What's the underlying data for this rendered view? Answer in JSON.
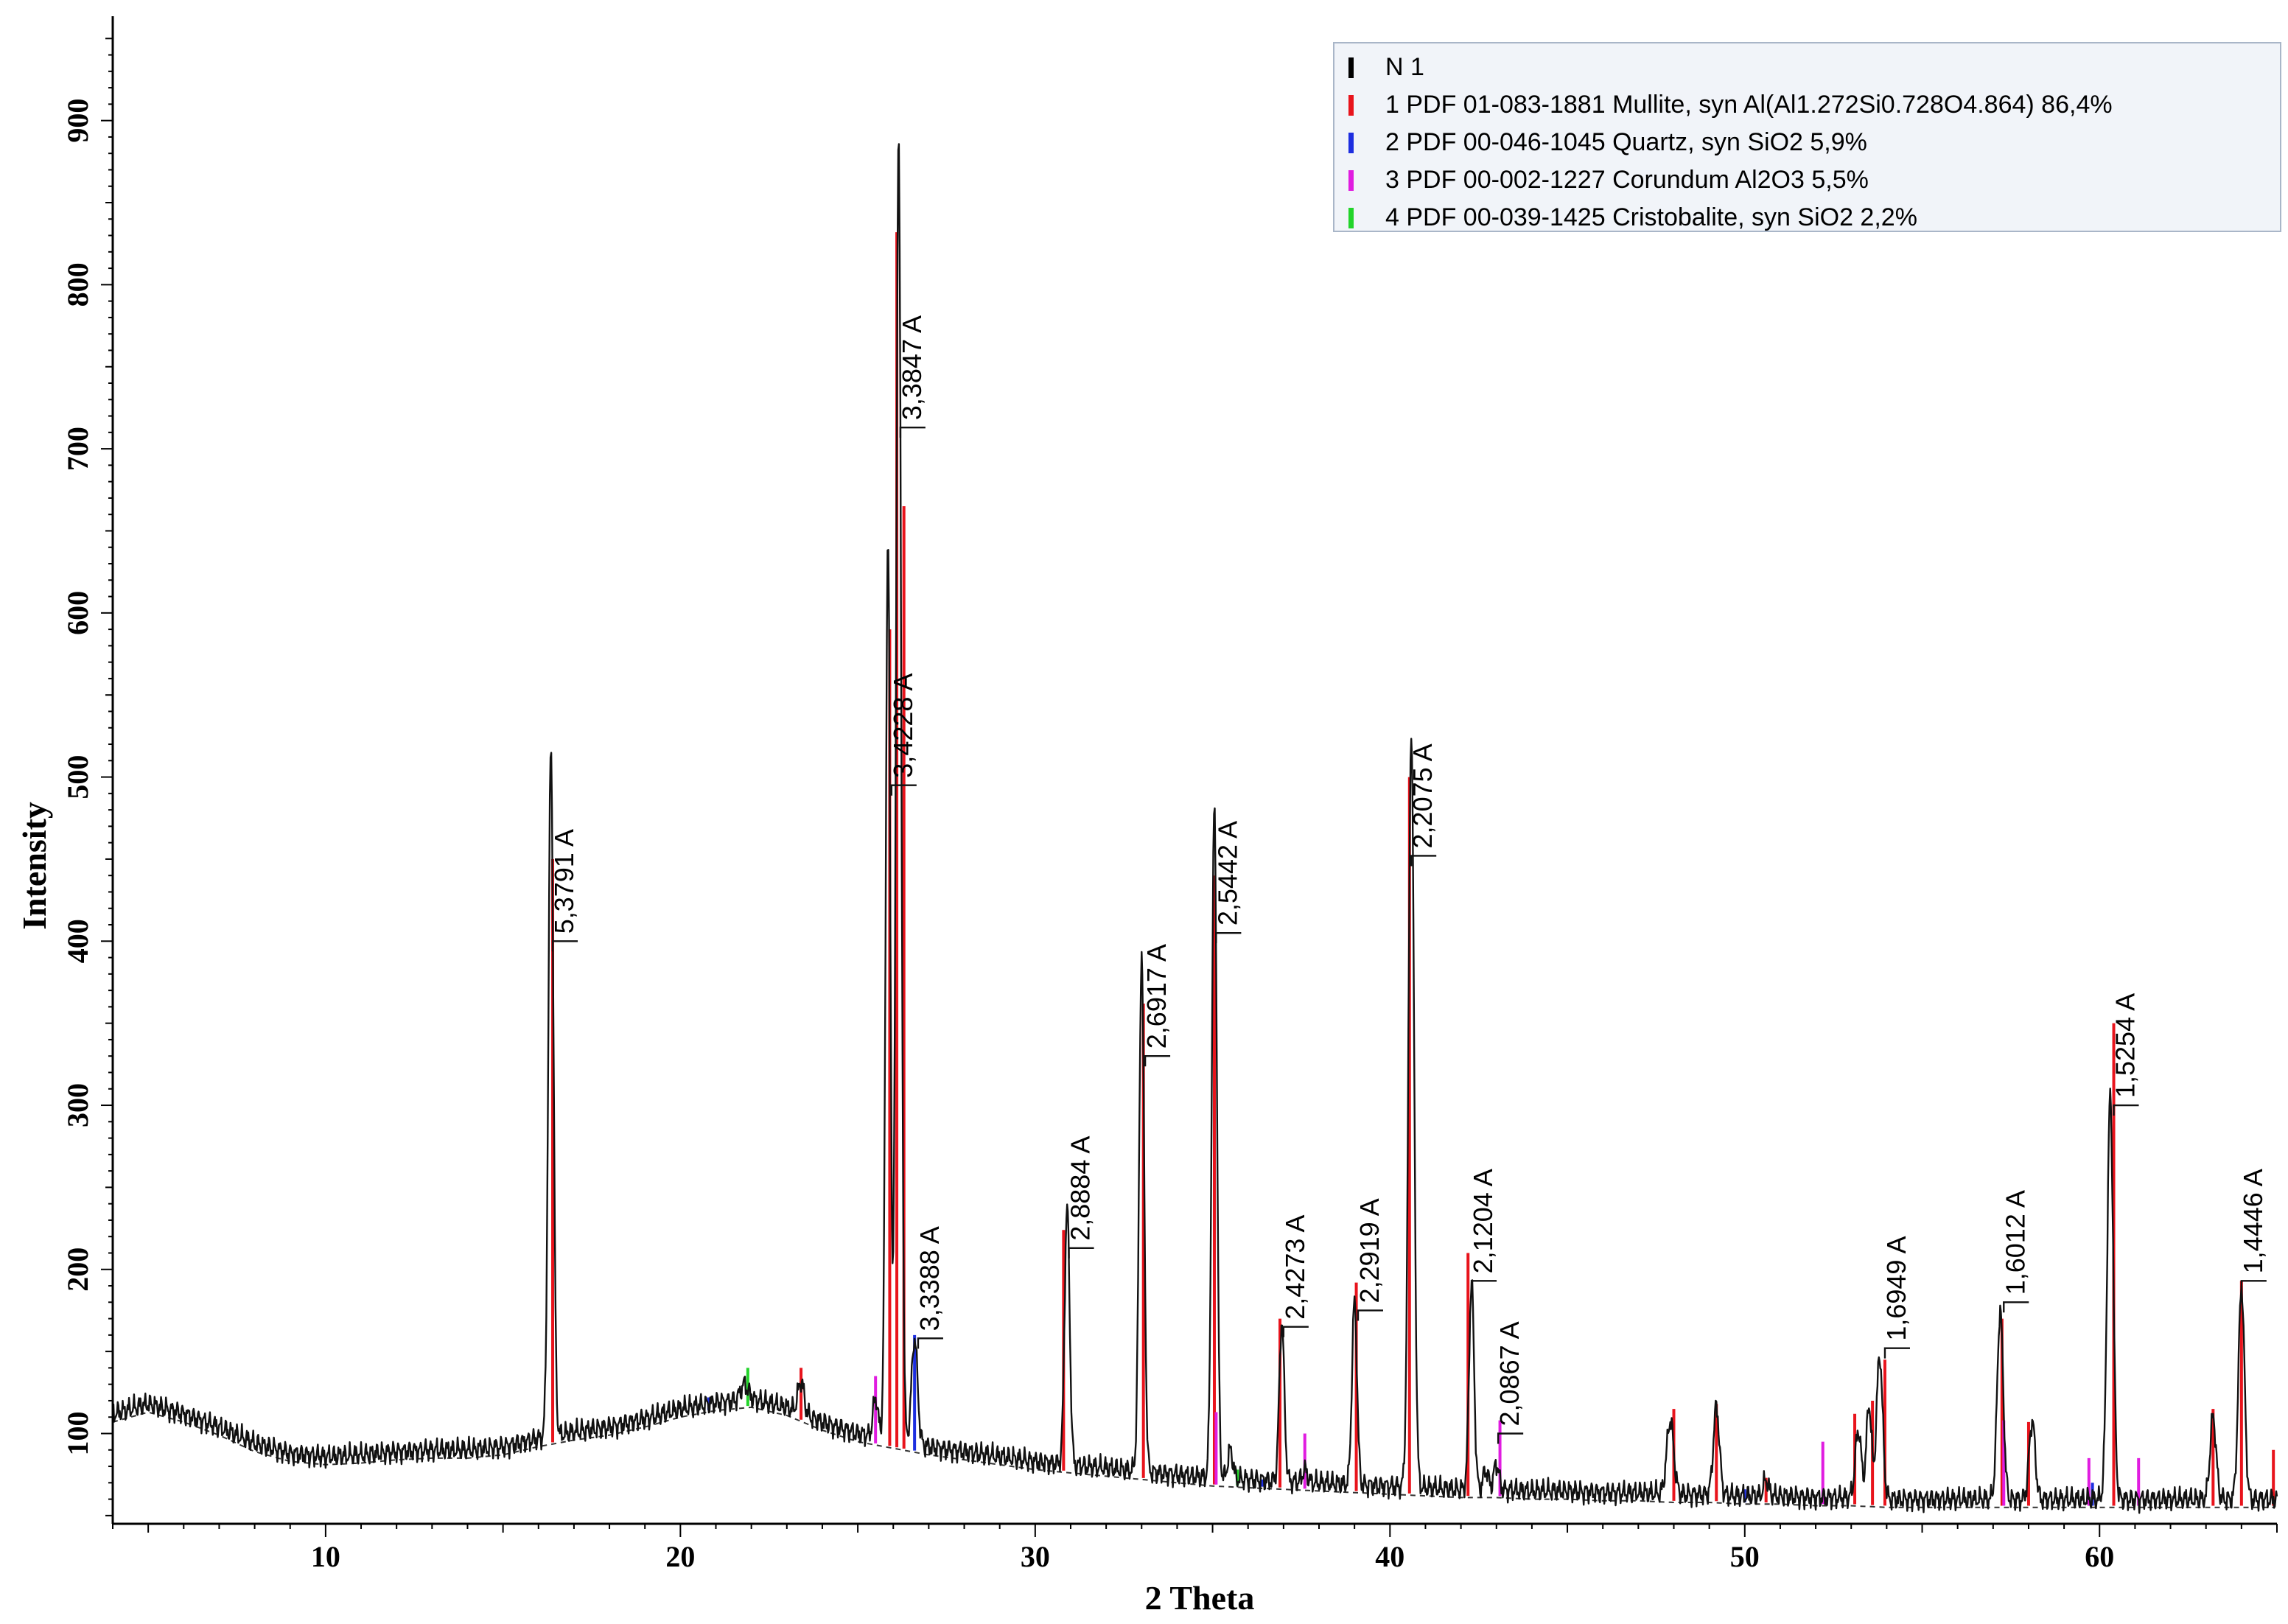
{
  "chart_data": {
    "type": "line",
    "xlabel": "2 Theta",
    "ylabel": "Intensity",
    "xlim": [
      4,
      65
    ],
    "ylim": [
      45,
      960
    ],
    "x_ticks": [
      10,
      20,
      30,
      40,
      50,
      60
    ],
    "y_ticks": [
      100,
      200,
      300,
      400,
      500,
      600,
      700,
      800,
      900
    ],
    "series": [
      {
        "name": "N 1",
        "color": "#000000",
        "baseline": [
          [
            4,
            112
          ],
          [
            5,
            118
          ],
          [
            6,
            112
          ],
          [
            7,
            104
          ],
          [
            8,
            94
          ],
          [
            9,
            88
          ],
          [
            10,
            86
          ],
          [
            11,
            87
          ],
          [
            12,
            89
          ],
          [
            13,
            90
          ],
          [
            14,
            90
          ],
          [
            15,
            92
          ],
          [
            16,
            97
          ],
          [
            17,
            101
          ],
          [
            18,
            104
          ],
          [
            19,
            109
          ],
          [
            20,
            115
          ],
          [
            21,
            119
          ],
          [
            22,
            121
          ],
          [
            23,
            116
          ],
          [
            24,
            107
          ],
          [
            25,
            100
          ],
          [
            26,
            96
          ],
          [
            27,
            92
          ],
          [
            28,
            89
          ],
          [
            29,
            86
          ],
          [
            30,
            83
          ],
          [
            31,
            81
          ],
          [
            32,
            79
          ],
          [
            33,
            77
          ],
          [
            34,
            75
          ],
          [
            35,
            73
          ],
          [
            36,
            72
          ],
          [
            37,
            71
          ],
          [
            38,
            70
          ],
          [
            39,
            69
          ],
          [
            40,
            68
          ],
          [
            41,
            67
          ],
          [
            42,
            66
          ],
          [
            43,
            66
          ],
          [
            44,
            65
          ],
          [
            45,
            65
          ],
          [
            46,
            64
          ],
          [
            47,
            64
          ],
          [
            48,
            63
          ],
          [
            49,
            63
          ],
          [
            50,
            62
          ],
          [
            51,
            62
          ],
          [
            52,
            61
          ],
          [
            53,
            61
          ],
          [
            54,
            60
          ],
          [
            55,
            60
          ],
          [
            56,
            60
          ],
          [
            57,
            60
          ],
          [
            58,
            60
          ],
          [
            59,
            60
          ],
          [
            60,
            60
          ],
          [
            61,
            60
          ],
          [
            62,
            60
          ],
          [
            63,
            60
          ],
          [
            64,
            60
          ],
          [
            65,
            60
          ]
        ],
        "peaks": [
          [
            16.35,
            518,
            0.1
          ],
          [
            21.8,
            130,
            0.15
          ],
          [
            23.4,
            132,
            0.12
          ],
          [
            25.5,
            122,
            0.1
          ],
          [
            25.85,
            648,
            0.09
          ],
          [
            26.15,
            893,
            0.1
          ],
          [
            26.6,
            158,
            0.12
          ],
          [
            30.9,
            238,
            0.1
          ],
          [
            33.0,
            392,
            0.1
          ],
          [
            35.05,
            482,
            0.1
          ],
          [
            35.5,
            90,
            0.1
          ],
          [
            36.95,
            168,
            0.1
          ],
          [
            37.6,
            78,
            0.1
          ],
          [
            39.0,
            180,
            0.1
          ],
          [
            40.6,
            528,
            0.11
          ],
          [
            42.3,
            192,
            0.1
          ],
          [
            42.7,
            78,
            0.1
          ],
          [
            43.0,
            82,
            0.1
          ],
          [
            47.9,
            108,
            0.14
          ],
          [
            49.2,
            116,
            0.12
          ],
          [
            50.6,
            72,
            0.1
          ],
          [
            53.2,
            102,
            0.12
          ],
          [
            53.5,
            118,
            0.1
          ],
          [
            53.8,
            148,
            0.12
          ],
          [
            57.2,
            175,
            0.12
          ],
          [
            58.1,
            108,
            0.12
          ],
          [
            60.3,
            305,
            0.12
          ],
          [
            63.2,
            110,
            0.12
          ],
          [
            64.0,
            190,
            0.12
          ]
        ]
      }
    ],
    "phases": [
      {
        "name": "1 PDF 01-083-1881 Mullite, syn Al(Al1.272Si0.728O4.864) 86,4%",
        "color": "#e8141c",
        "sticks": [
          [
            16.4,
            450
          ],
          [
            23.4,
            140
          ],
          [
            25.9,
            590
          ],
          [
            26.1,
            832
          ],
          [
            26.3,
            665
          ],
          [
            30.8,
            224
          ],
          [
            33.05,
            362
          ],
          [
            35.05,
            440
          ],
          [
            36.9,
            170
          ],
          [
            39.05,
            192
          ],
          [
            40.55,
            500
          ],
          [
            42.2,
            210
          ],
          [
            48.0,
            115
          ],
          [
            49.2,
            118
          ],
          [
            50.6,
            73
          ],
          [
            53.1,
            112
          ],
          [
            53.6,
            120
          ],
          [
            53.95,
            145
          ],
          [
            57.25,
            170
          ],
          [
            58.0,
            107
          ],
          [
            60.4,
            350
          ],
          [
            63.2,
            115
          ],
          [
            64.0,
            193
          ],
          [
            64.9,
            90
          ]
        ]
      },
      {
        "name": "2 PDF 00-046-1045 Quartz, syn SiO2 5,9%",
        "color": "#1d2ee0",
        "sticks": [
          [
            20.8,
            122
          ],
          [
            26.6,
            160
          ],
          [
            36.4,
            72
          ],
          [
            50.0,
            66
          ],
          [
            59.8,
            70
          ]
        ]
      },
      {
        "name": "3 PDF 00-002-1227 Corundum Al2O3 5,5%",
        "color": "#e01ce0",
        "sticks": [
          [
            25.5,
            135
          ],
          [
            35.1,
            113
          ],
          [
            37.6,
            100
          ],
          [
            43.1,
            108
          ],
          [
            52.2,
            95
          ],
          [
            57.3,
            108
          ],
          [
            59.7,
            85
          ],
          [
            61.1,
            85
          ]
        ]
      },
      {
        "name": "4 PDF 00-039-1425 Cristobalite, syn SiO2 2,2%",
        "color": "#22d42a",
        "sticks": [
          [
            21.9,
            140
          ],
          [
            35.7,
            78
          ]
        ]
      }
    ],
    "peak_labels": [
      {
        "text": "5,3791 A",
        "x": 16.4,
        "y": 400
      },
      {
        "text": "3,4228 A",
        "x": 25.95,
        "y": 495
      },
      {
        "text": "3,3847 A",
        "x": 26.2,
        "y": 713
      },
      {
        "text": "3,3388 A",
        "x": 26.7,
        "y": 158
      },
      {
        "text": "2,8884 A",
        "x": 30.95,
        "y": 213
      },
      {
        "text": "2,6917 A",
        "x": 33.1,
        "y": 330
      },
      {
        "text": "2,5442 A",
        "x": 35.1,
        "y": 405
      },
      {
        "text": "2,4273 A",
        "x": 37.0,
        "y": 165
      },
      {
        "text": "2,2919 A",
        "x": 39.1,
        "y": 175
      },
      {
        "text": "2,2075 A",
        "x": 40.6,
        "y": 452
      },
      {
        "text": "2,1204 A",
        "x": 42.3,
        "y": 193
      },
      {
        "text": "2,0867 A",
        "x": 43.05,
        "y": 100
      },
      {
        "text": "1,6949 A",
        "x": 53.95,
        "y": 152
      },
      {
        "text": "1,6012 A",
        "x": 57.3,
        "y": 180
      },
      {
        "text": "1,5254 A",
        "x": 60.4,
        "y": 300
      },
      {
        "text": "1,4446 A",
        "x": 64.0,
        "y": 193
      }
    ],
    "legend": {
      "position": "top-right",
      "entries": [
        {
          "label": "N 1",
          "color": "#000000"
        },
        {
          "label": "1 PDF 01-083-1881 Mullite, syn Al(Al1.272Si0.728O4.864) 86,4%",
          "color": "#e8141c"
        },
        {
          "label": "2 PDF 00-046-1045 Quartz, syn SiO2 5,9%",
          "color": "#1d2ee0"
        },
        {
          "label": "3 PDF 00-002-1227 Corundum Al2O3 5,5%",
          "color": "#e01ce0"
        },
        {
          "label": "4 PDF 00-039-1425 Cristobalite, syn SiO2 2,2%",
          "color": "#22d42a"
        }
      ]
    }
  }
}
